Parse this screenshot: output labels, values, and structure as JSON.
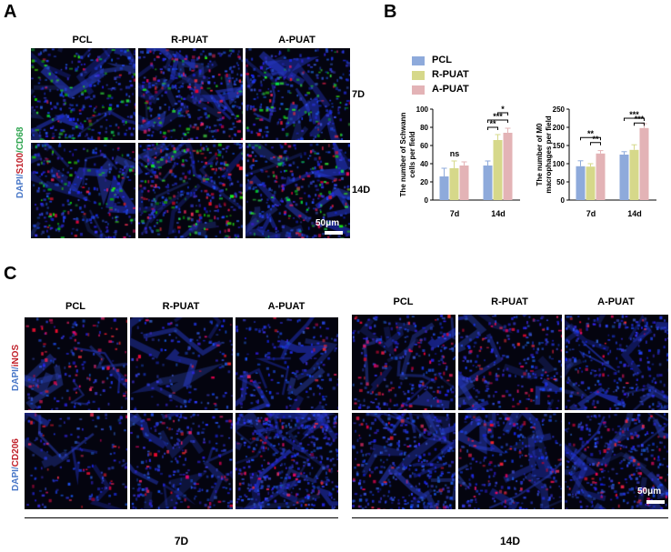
{
  "panel_a": {
    "letter": "A",
    "columns": [
      "PCL",
      "R-PUAT",
      "A-PUAT"
    ],
    "rows": [
      "7D",
      "14D"
    ],
    "stain_label": {
      "dapi": "DAPI",
      "sep1": "/",
      "s100": "S100",
      "sep2": "/",
      "cd68": "CD68"
    },
    "scale_bar": "50μm"
  },
  "panel_b": {
    "letter": "B",
    "legend": [
      "PCL",
      "R-PUAT",
      "A-PUAT"
    ]
  },
  "panel_c": {
    "letter": "C",
    "columns": [
      "PCL",
      "R-PUAT",
      "A-PUAT",
      "PCL",
      "R-PUAT",
      "A-PUAT"
    ],
    "stain_row1": {
      "dapi": "DAPI",
      "sep": "/",
      "marker": "iNOS"
    },
    "stain_row2": {
      "dapi": "DAPI",
      "sep": "/",
      "marker": "CD206"
    },
    "scale_bar": "50μm",
    "groups": [
      "7D",
      "14D"
    ]
  },
  "colors": {
    "pcl": "#8eaadb",
    "r_puat": "#d6d88a",
    "a_puat": "#e3b3b6",
    "dapi": "#4a78c8",
    "s100": "#c0202a",
    "cd68": "#2ea44f"
  },
  "chart_data": [
    {
      "type": "bar",
      "ylabel": "The number of Schwann cells per field",
      "categories": [
        "7d",
        "14d"
      ],
      "ylim": [
        0,
        100
      ],
      "yticks": [
        0,
        20,
        40,
        60,
        80,
        100
      ],
      "series": [
        {
          "name": "PCL",
          "values": [
            26,
            38
          ],
          "errors": [
            9,
            5
          ]
        },
        {
          "name": "R-PUAT",
          "values": [
            35,
            66
          ],
          "errors": [
            8,
            6
          ]
        },
        {
          "name": "A-PUAT",
          "values": [
            38,
            74
          ],
          "errors": [
            4,
            5
          ]
        }
      ],
      "annotations": [
        "ns",
        "**",
        "***",
        "*"
      ]
    },
    {
      "type": "bar",
      "ylabel": "The number of M0 macrophages per field",
      "categories": [
        "7d",
        "14d"
      ],
      "ylim": [
        0,
        250
      ],
      "yticks": [
        0,
        50,
        100,
        150,
        200,
        250
      ],
      "series": [
        {
          "name": "PCL",
          "values": [
            93,
            125
          ],
          "errors": [
            15,
            8
          ]
        },
        {
          "name": "R-PUAT",
          "values": [
            92,
            138
          ],
          "errors": [
            8,
            14
          ]
        },
        {
          "name": "A-PUAT",
          "values": [
            128,
            198
          ],
          "errors": [
            8,
            12
          ]
        }
      ],
      "annotations": [
        "**",
        "**",
        "***",
        "***"
      ]
    }
  ]
}
